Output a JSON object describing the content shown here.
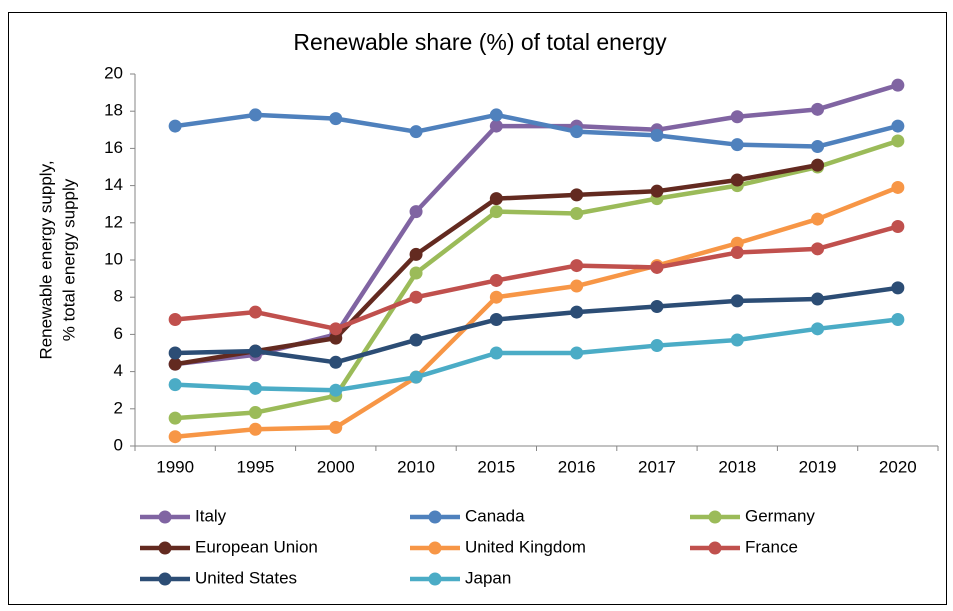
{
  "chart_data": {
    "type": "line",
    "title": "Renewable share (%) of total energy",
    "y_label": [
      "Renewable energy supply,",
      "% total energy supply"
    ],
    "categories": [
      "1990",
      "1995",
      "2000",
      "2010",
      "2015",
      "2016",
      "2017",
      "2018",
      "2019",
      "2020"
    ],
    "ylim": [
      0,
      20
    ],
    "yticks": [
      0,
      2,
      4,
      6,
      8,
      10,
      12,
      14,
      16,
      18,
      20
    ],
    "grid": false,
    "legend": "bottom",
    "series": [
      {
        "name": "Italy",
        "color": "#8064a2",
        "values": [
          4.4,
          4.9,
          6.0,
          12.6,
          17.2,
          17.2,
          17.0,
          17.7,
          18.1,
          19.4
        ]
      },
      {
        "name": "Canada",
        "color": "#4f81bd",
        "values": [
          17.2,
          17.8,
          17.6,
          16.9,
          17.8,
          16.9,
          16.7,
          16.2,
          16.1,
          17.2
        ]
      },
      {
        "name": "Germany",
        "color": "#9bbb59",
        "values": [
          1.5,
          1.8,
          2.7,
          9.3,
          12.6,
          12.5,
          13.3,
          14.0,
          15.0,
          16.4
        ]
      },
      {
        "name": "European Union",
        "color": "#632a20",
        "values": [
          4.4,
          5.1,
          5.8,
          10.3,
          13.3,
          13.5,
          13.7,
          14.3,
          15.1,
          null
        ]
      },
      {
        "name": "United Kingdom",
        "color": "#f79646",
        "values": [
          0.5,
          0.9,
          1.0,
          3.7,
          8.0,
          8.6,
          9.7,
          10.9,
          12.2,
          13.9
        ]
      },
      {
        "name": "France",
        "color": "#c0504d",
        "values": [
          6.8,
          7.2,
          6.3,
          8.0,
          8.9,
          9.7,
          9.6,
          10.4,
          10.6,
          11.8
        ]
      },
      {
        "name": "United States",
        "color": "#2c4d75",
        "values": [
          5.0,
          5.1,
          4.5,
          5.7,
          6.8,
          7.2,
          7.5,
          7.8,
          7.9,
          8.5
        ]
      },
      {
        "name": "Japan",
        "color": "#4bacc6",
        "values": [
          3.3,
          3.1,
          3.0,
          3.7,
          5.0,
          5.0,
          5.4,
          5.7,
          6.3,
          6.8
        ]
      }
    ]
  }
}
